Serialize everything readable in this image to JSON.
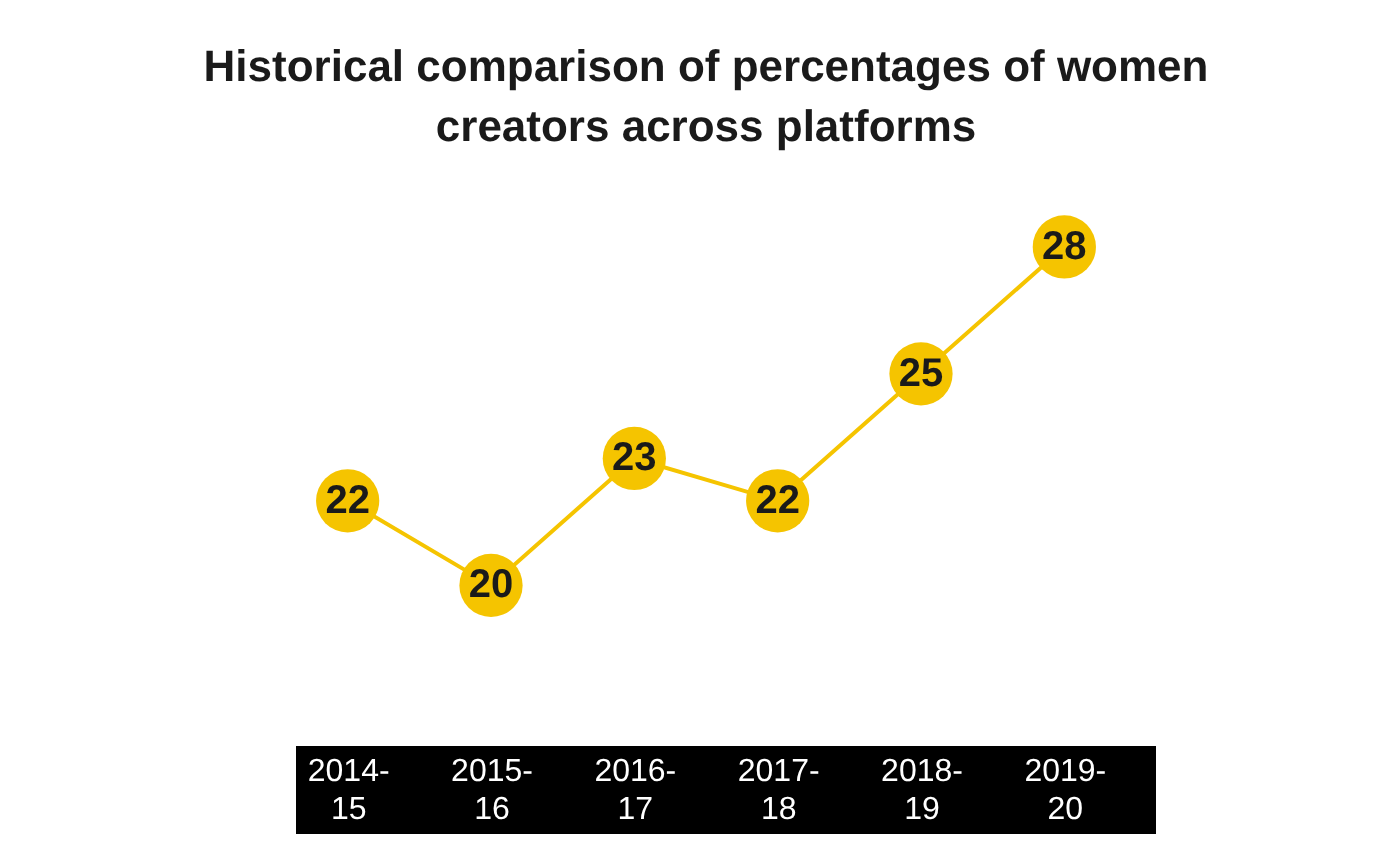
{
  "chart_data": {
    "type": "line",
    "title": "Historical comparison of percentages of women creators across platforms",
    "categories": [
      "2014-15",
      "2015-16",
      "2016-17",
      "2017-18",
      "2018-19",
      "2019-20"
    ],
    "series": [
      {
        "color": "#f5c400",
        "values": [
          22,
          20,
          23,
          22,
          25,
          28
        ]
      }
    ],
    "data_labels": true,
    "marker": "circle"
  }
}
